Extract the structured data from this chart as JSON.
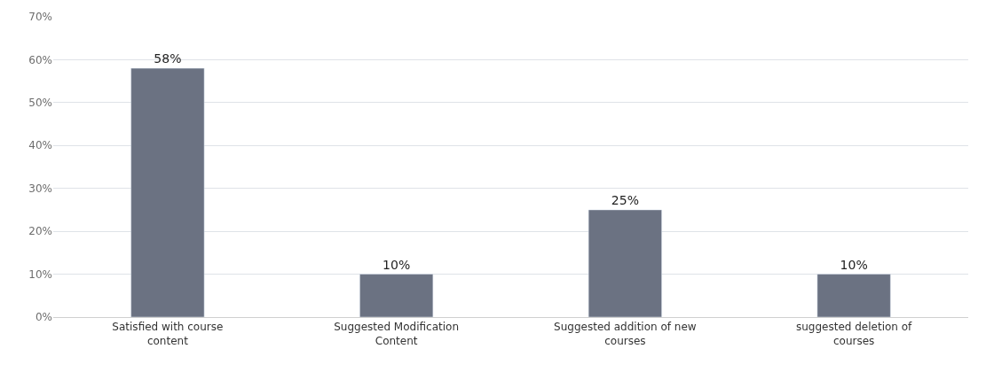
{
  "chart_data": {
    "type": "bar",
    "categories": [
      "Satisfied with course\ncontent",
      "Suggested Modification\nContent",
      "Suggested addition of new\ncourses",
      "suggested deletion of\ncourses"
    ],
    "values": [
      58,
      10,
      25,
      10
    ],
    "color": "#6b7282",
    "data_labels": true,
    "value_labels": [
      "58%",
      "10%",
      "25%",
      "10%"
    ],
    "ylim": [
      0,
      70
    ],
    "yticks": [
      {
        "value": 0,
        "label": "0%"
      },
      {
        "value": 10,
        "label": "10%"
      },
      {
        "value": 20,
        "label": "20%"
      },
      {
        "value": 30,
        "label": "30%"
      },
      {
        "value": 40,
        "label": "40%"
      },
      {
        "value": 50,
        "label": "50%"
      },
      {
        "value": 60,
        "label": "60%"
      },
      {
        "value": 70,
        "label": "70%"
      }
    ],
    "grid": "y"
  }
}
